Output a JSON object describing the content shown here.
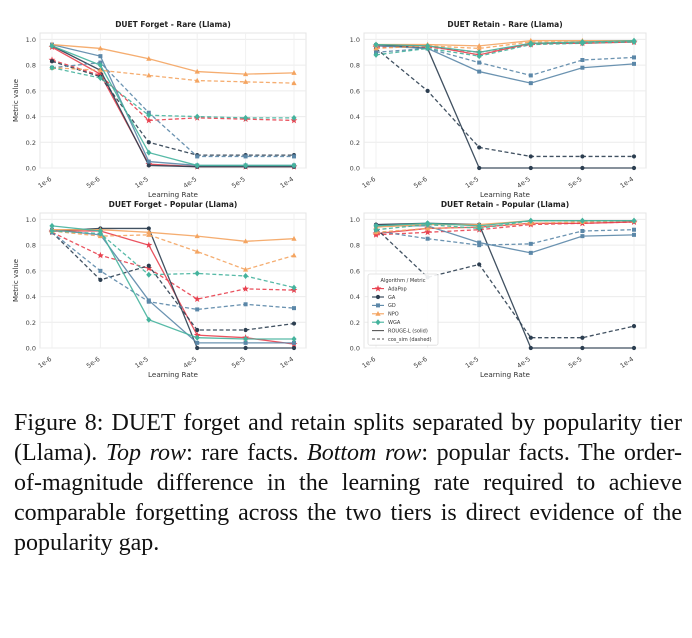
{
  "metric_axis_label": "Metric value",
  "lr_axis_label": "Learning Rate",
  "x_ticks": [
    "1e-6",
    "5e-6",
    "1e-5",
    "4e-5",
    "5e-5",
    "1e-4"
  ],
  "y_ticks": [
    "0.0",
    "0.2",
    "0.4",
    "0.6",
    "0.8",
    "1.0"
  ],
  "legend": {
    "title": "Algorithm / Metric",
    "entries": [
      {
        "label": "AdaPop",
        "color": "#e8414f",
        "style": "solid",
        "marker": "star"
      },
      {
        "label": "GA",
        "color": "#2c3e50",
        "style": "solid",
        "marker": "circle"
      },
      {
        "label": "GD",
        "color": "#5b87a8",
        "style": "solid",
        "marker": "square"
      },
      {
        "label": "NPO",
        "color": "#f4a460",
        "style": "solid",
        "marker": "triangle"
      },
      {
        "label": "WGA",
        "color": "#45b39d",
        "style": "solid",
        "marker": "diamond"
      },
      {
        "label": "ROUGE-L (solid)",
        "color": "#555555",
        "style": "solid",
        "marker": "none"
      },
      {
        "label": "cos_sim (dashed)",
        "color": "#555555",
        "style": "dashed",
        "marker": "none"
      }
    ]
  },
  "chart_data": [
    {
      "type": "line",
      "title": "DUET Forget - Rare (Llama)",
      "xlabel": "Learning Rate",
      "ylabel": "Metric value",
      "categories": [
        "1e-6",
        "5e-6",
        "1e-5",
        "4e-5",
        "5e-5",
        "1e-4"
      ],
      "ylim": [
        0,
        1.05
      ],
      "grid": true,
      "series": [
        {
          "algo": "AdaPop",
          "metric": "ROUGE-L",
          "values": [
            0.94,
            0.73,
            0.03,
            0.01,
            0.01,
            0.01
          ]
        },
        {
          "algo": "AdaPop",
          "metric": "cos_sim",
          "values": [
            0.84,
            0.72,
            0.37,
            0.39,
            0.38,
            0.37
          ]
        },
        {
          "algo": "GA",
          "metric": "ROUGE-L",
          "values": [
            0.95,
            0.76,
            0.02,
            0.01,
            0.01,
            0.01
          ]
        },
        {
          "algo": "GA",
          "metric": "cos_sim",
          "values": [
            0.83,
            0.71,
            0.2,
            0.1,
            0.1,
            0.1
          ]
        },
        {
          "algo": "GD",
          "metric": "ROUGE-L",
          "values": [
            0.96,
            0.87,
            0.05,
            0.02,
            0.02,
            0.02
          ]
        },
        {
          "algo": "GD",
          "metric": "cos_sim",
          "values": [
            0.78,
            0.82,
            0.43,
            0.09,
            0.09,
            0.09
          ]
        },
        {
          "algo": "NPO",
          "metric": "ROUGE-L",
          "values": [
            0.96,
            0.93,
            0.85,
            0.75,
            0.73,
            0.74
          ]
        },
        {
          "algo": "NPO",
          "metric": "cos_sim",
          "values": [
            0.78,
            0.76,
            0.72,
            0.68,
            0.67,
            0.66
          ]
        },
        {
          "algo": "WGA",
          "metric": "ROUGE-L",
          "values": [
            0.95,
            0.8,
            0.12,
            0.02,
            0.02,
            0.02
          ]
        },
        {
          "algo": "WGA",
          "metric": "cos_sim",
          "values": [
            0.78,
            0.7,
            0.41,
            0.4,
            0.39,
            0.39
          ]
        }
      ]
    },
    {
      "type": "line",
      "title": "DUET Retain - Rare (Llama)",
      "xlabel": "Learning Rate",
      "ylabel": "",
      "categories": [
        "1e-6",
        "5e-6",
        "1e-5",
        "4e-5",
        "5e-5",
        "1e-4"
      ],
      "ylim": [
        0,
        1.05
      ],
      "grid": true,
      "series": [
        {
          "algo": "AdaPop",
          "metric": "ROUGE-L",
          "values": [
            0.95,
            0.95,
            0.88,
            0.97,
            0.97,
            0.98
          ]
        },
        {
          "algo": "AdaPop",
          "metric": "cos_sim",
          "values": [
            0.94,
            0.94,
            0.9,
            0.96,
            0.98,
            0.98
          ]
        },
        {
          "algo": "GA",
          "metric": "ROUGE-L",
          "values": [
            0.96,
            0.93,
            0.0,
            0.0,
            0.0,
            0.0
          ]
        },
        {
          "algo": "GA",
          "metric": "cos_sim",
          "values": [
            0.93,
            0.6,
            0.16,
            0.09,
            0.09,
            0.09
          ]
        },
        {
          "algo": "GD",
          "metric": "ROUGE-L",
          "values": [
            0.95,
            0.93,
            0.75,
            0.66,
            0.78,
            0.81
          ]
        },
        {
          "algo": "GD",
          "metric": "cos_sim",
          "values": [
            0.9,
            0.93,
            0.82,
            0.72,
            0.84,
            0.86
          ]
        },
        {
          "algo": "NPO",
          "metric": "ROUGE-L",
          "values": [
            0.96,
            0.96,
            0.95,
            0.99,
            0.99,
            0.99
          ]
        },
        {
          "algo": "NPO",
          "metric": "cos_sim",
          "values": [
            0.93,
            0.95,
            0.93,
            0.98,
            0.98,
            0.99
          ]
        },
        {
          "algo": "WGA",
          "metric": "ROUGE-L",
          "values": [
            0.96,
            0.95,
            0.9,
            0.97,
            0.98,
            0.99
          ]
        },
        {
          "algo": "WGA",
          "metric": "cos_sim",
          "values": [
            0.88,
            0.93,
            0.87,
            0.96,
            0.97,
            0.98
          ]
        }
      ]
    },
    {
      "type": "line",
      "title": "DUET Forget - Popular (Llama)",
      "xlabel": "Learning Rate",
      "ylabel": "Metric value",
      "categories": [
        "1e-6",
        "5e-6",
        "1e-5",
        "4e-5",
        "5e-5",
        "1e-4"
      ],
      "ylim": [
        0,
        1.05
      ],
      "grid": true,
      "series": [
        {
          "algo": "AdaPop",
          "metric": "ROUGE-L",
          "values": [
            0.91,
            0.91,
            0.8,
            0.1,
            0.08,
            0.03
          ]
        },
        {
          "algo": "AdaPop",
          "metric": "cos_sim",
          "values": [
            0.9,
            0.72,
            0.62,
            0.38,
            0.46,
            0.45
          ]
        },
        {
          "algo": "GA",
          "metric": "ROUGE-L",
          "values": [
            0.91,
            0.93,
            0.93,
            0.0,
            0.0,
            0.0
          ]
        },
        {
          "algo": "GA",
          "metric": "cos_sim",
          "values": [
            0.9,
            0.53,
            0.64,
            0.14,
            0.14,
            0.19
          ]
        },
        {
          "algo": "GD",
          "metric": "ROUGE-L",
          "values": [
            0.92,
            0.88,
            0.37,
            0.04,
            0.04,
            0.04
          ]
        },
        {
          "algo": "GD",
          "metric": "cos_sim",
          "values": [
            0.9,
            0.6,
            0.36,
            0.3,
            0.34,
            0.31
          ]
        },
        {
          "algo": "NPO",
          "metric": "ROUGE-L",
          "values": [
            0.92,
            0.92,
            0.9,
            0.87,
            0.83,
            0.85
          ]
        },
        {
          "algo": "NPO",
          "metric": "cos_sim",
          "values": [
            0.91,
            0.87,
            0.88,
            0.75,
            0.61,
            0.72
          ]
        },
        {
          "algo": "WGA",
          "metric": "ROUGE-L",
          "values": [
            0.95,
            0.91,
            0.22,
            0.08,
            0.07,
            0.07
          ]
        },
        {
          "algo": "WGA",
          "metric": "cos_sim",
          "values": [
            0.91,
            0.89,
            0.57,
            0.58,
            0.56,
            0.47
          ]
        }
      ]
    },
    {
      "type": "line",
      "title": "DUET Retain - Popular (Llama)",
      "xlabel": "Learning Rate",
      "ylabel": "",
      "categories": [
        "1e-6",
        "5e-6",
        "1e-5",
        "4e-5",
        "5e-5",
        "1e-4"
      ],
      "ylim": [
        0,
        1.05
      ],
      "grid": true,
      "series": [
        {
          "algo": "AdaPop",
          "metric": "ROUGE-L",
          "values": [
            0.89,
            0.93,
            0.94,
            0.97,
            0.97,
            0.98
          ]
        },
        {
          "algo": "AdaPop",
          "metric": "cos_sim",
          "values": [
            0.88,
            0.9,
            0.92,
            0.96,
            0.97,
            0.98
          ]
        },
        {
          "algo": "GA",
          "metric": "ROUGE-L",
          "values": [
            0.96,
            0.97,
            0.96,
            0.0,
            0.0,
            0.0
          ]
        },
        {
          "algo": "GA",
          "metric": "cos_sim",
          "values": [
            0.93,
            0.55,
            0.65,
            0.08,
            0.08,
            0.17
          ]
        },
        {
          "algo": "GD",
          "metric": "ROUGE-L",
          "values": [
            0.95,
            0.95,
            0.82,
            0.74,
            0.87,
            0.88
          ]
        },
        {
          "algo": "GD",
          "metric": "cos_sim",
          "values": [
            0.91,
            0.85,
            0.8,
            0.81,
            0.91,
            0.92
          ]
        },
        {
          "algo": "NPO",
          "metric": "ROUGE-L",
          "values": [
            0.94,
            0.96,
            0.96,
            0.99,
            0.99,
            0.99
          ]
        },
        {
          "algo": "NPO",
          "metric": "cos_sim",
          "values": [
            0.9,
            0.93,
            0.94,
            0.97,
            0.98,
            0.99
          ]
        },
        {
          "algo": "WGA",
          "metric": "ROUGE-L",
          "values": [
            0.95,
            0.97,
            0.95,
            0.99,
            0.99,
            0.99
          ]
        },
        {
          "algo": "WGA",
          "metric": "cos_sim",
          "values": [
            0.92,
            0.96,
            0.93,
            0.99,
            0.99,
            0.99
          ]
        }
      ]
    }
  ],
  "caption": {
    "label": "Figure 8:",
    "text1": "DUET forget and retain splits separated by popularity tier (Llama).",
    "top_row_label": "Top row",
    "top_row_text": ": rare facts.",
    "bottom_row_label": "Bottom row",
    "bottom_row_text": ": popular facts. The order-of-magnitude difference in the learning rate required to achieve comparable forgetting across the two tiers is direct evidence of the popularity gap."
  }
}
